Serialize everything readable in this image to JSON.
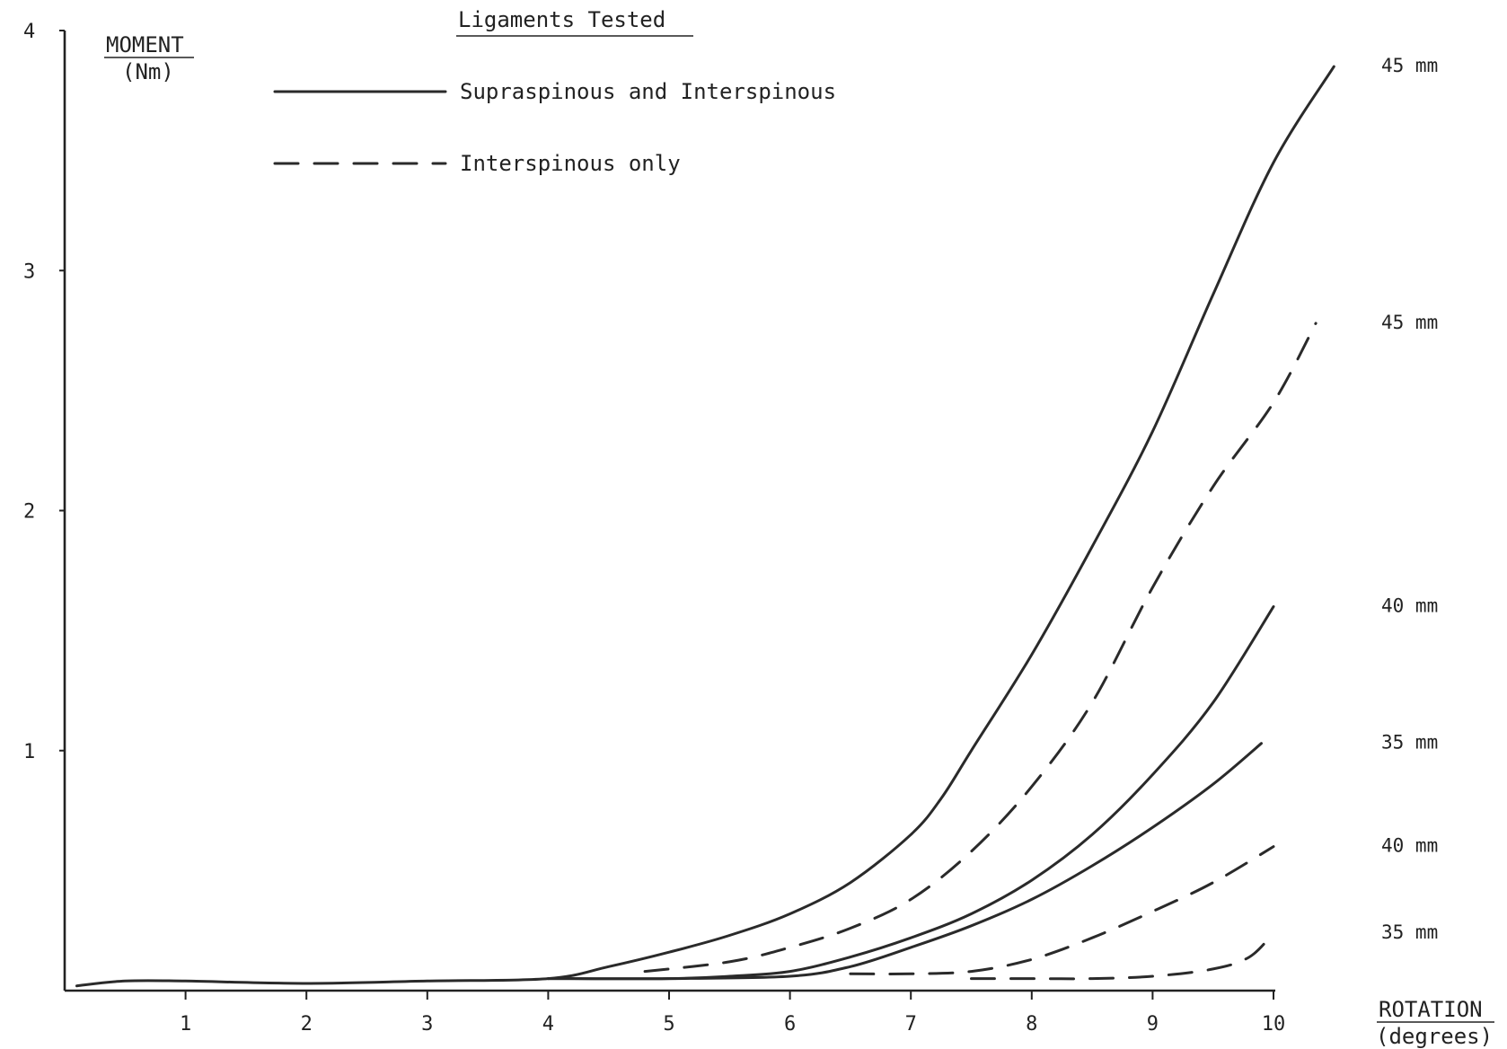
{
  "chart_data": {
    "type": "line",
    "title": "",
    "ylabel_top": "MOMENT",
    "ylabel_bottom": "(Nm)",
    "xlabel_top": "ROTATION",
    "xlabel_bottom": "(degrees)",
    "xlim": [
      0,
      10
    ],
    "ylim": [
      0,
      4
    ],
    "xticks": [
      "1",
      "2",
      "3",
      "4",
      "5",
      "6",
      "7",
      "8",
      "9",
      "10"
    ],
    "yticks": [
      "1",
      "2",
      "3",
      "4"
    ],
    "grid": false,
    "legend": {
      "title": "Ligaments Tested",
      "placement": "top-center",
      "entries": [
        {
          "label": "Supraspinous and Interspinous",
          "style": "solid"
        },
        {
          "label": "Interspinous only",
          "style": "dashed"
        }
      ]
    },
    "series": [
      {
        "group": "Supraspinous and Interspinous",
        "label": "45 mm",
        "style": "solid",
        "x": [
          0.1,
          0.5,
          1,
          2,
          3,
          4,
          4.5,
          5,
          5.5,
          6,
          6.5,
          7,
          7.25,
          7.5,
          8,
          8.5,
          9,
          9.5,
          10,
          10.5
        ],
        "y": [
          0.02,
          0.04,
          0.04,
          0.03,
          0.04,
          0.05,
          0.1,
          0.16,
          0.23,
          0.32,
          0.45,
          0.65,
          0.8,
          1.0,
          1.4,
          1.85,
          2.33,
          2.9,
          3.45,
          3.85
        ]
      },
      {
        "group": "Supraspinous and Interspinous",
        "label": "40 mm",
        "style": "solid",
        "x": [
          4,
          5,
          5.5,
          6,
          6.5,
          7,
          7.5,
          8,
          8.5,
          9,
          9.5,
          10
        ],
        "y": [
          0.05,
          0.05,
          0.06,
          0.08,
          0.14,
          0.22,
          0.32,
          0.46,
          0.65,
          0.9,
          1.2,
          1.6
        ]
      },
      {
        "group": "Supraspinous and Interspinous",
        "label": "35 mm",
        "style": "solid",
        "x": [
          4,
          5,
          6,
          6.5,
          7,
          7.5,
          8,
          8.5,
          9,
          9.5,
          9.9
        ],
        "y": [
          0.05,
          0.05,
          0.06,
          0.1,
          0.18,
          0.27,
          0.38,
          0.52,
          0.68,
          0.86,
          1.03
        ]
      },
      {
        "group": "Interspinous only",
        "label": "45 mm",
        "style": "dashed",
        "x": [
          4.8,
          5.5,
          6,
          6.5,
          7,
          7.5,
          8,
          8.5,
          9,
          9.5,
          10,
          10.35
        ],
        "y": [
          0.08,
          0.12,
          0.18,
          0.26,
          0.38,
          0.58,
          0.85,
          1.2,
          1.68,
          2.1,
          2.45,
          2.78
        ]
      },
      {
        "group": "Interspinous only",
        "label": "40 mm",
        "style": "dashed",
        "x": [
          6.5,
          7,
          7.5,
          8,
          8.5,
          9,
          9.5,
          10
        ],
        "y": [
          0.07,
          0.07,
          0.08,
          0.13,
          0.22,
          0.33,
          0.45,
          0.6
        ]
      },
      {
        "group": "Interspinous only",
        "label": "35 mm",
        "style": "dashed",
        "x": [
          7.5,
          8,
          8.5,
          9,
          9.5,
          9.8,
          10
        ],
        "y": [
          0.05,
          0.05,
          0.05,
          0.06,
          0.09,
          0.14,
          0.24
        ]
      }
    ]
  }
}
